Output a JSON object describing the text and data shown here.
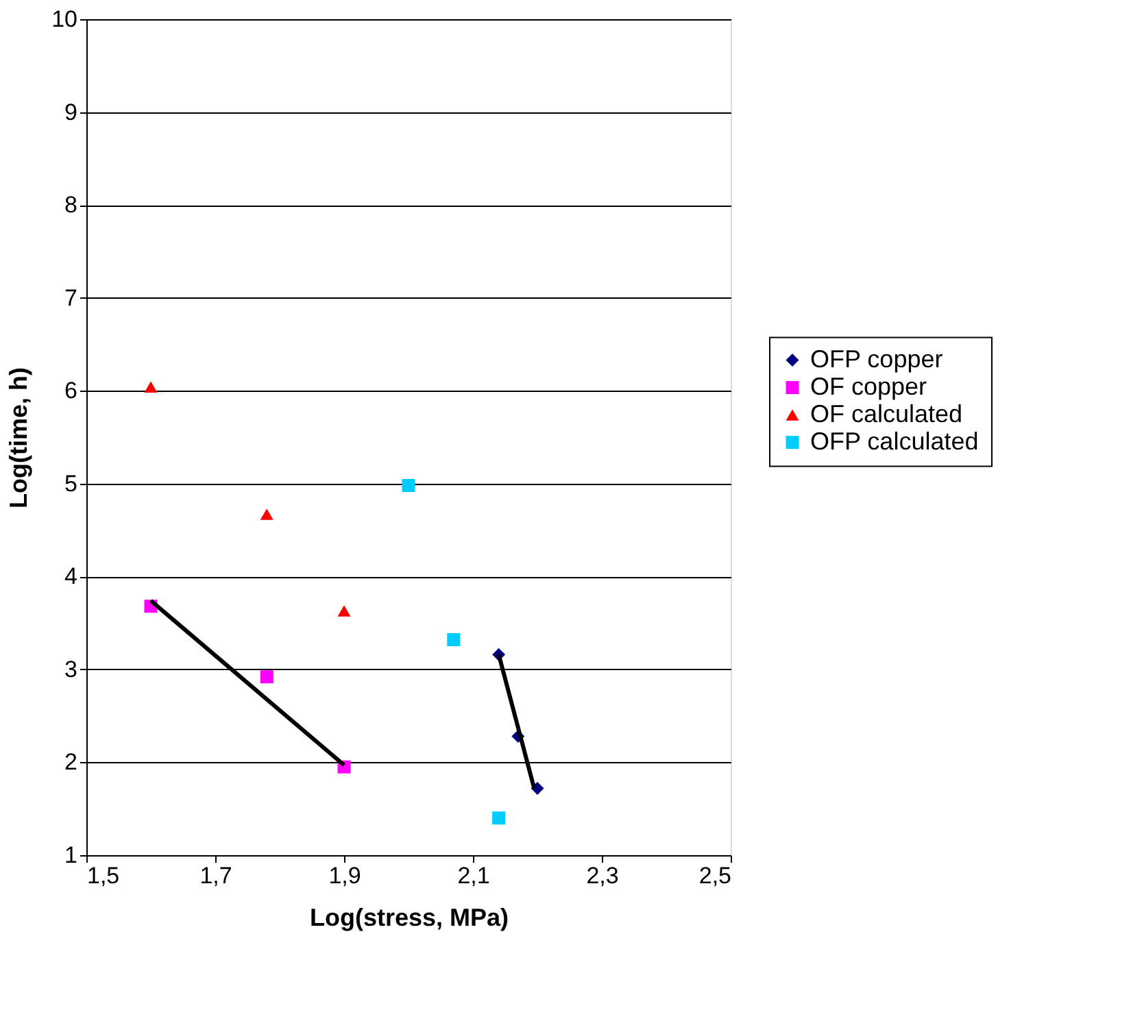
{
  "chart_data": {
    "type": "scatter",
    "xlabel": "Log(stress, MPa)",
    "ylabel": "Log(time, h)",
    "xlim": [
      1.5,
      2.5
    ],
    "xticks": [
      {
        "value": 1.5,
        "label": "1,5"
      },
      {
        "value": 1.7,
        "label": "1,7"
      },
      {
        "value": 1.9,
        "label": "1,9"
      },
      {
        "value": 2.1,
        "label": "2,1"
      },
      {
        "value": 2.3,
        "label": "2,3"
      },
      {
        "value": 2.5,
        "label": "2,5"
      }
    ],
    "ylim": [
      1,
      10
    ],
    "yticks": [
      1,
      2,
      3,
      4,
      5,
      6,
      7,
      8,
      9,
      10
    ],
    "grid": "y",
    "legend": "right",
    "series": [
      {
        "name": "OFP copper",
        "color": "#000080",
        "marker": "diamond",
        "x": [
          2.14,
          2.17,
          2.2
        ],
        "values": [
          3.16,
          2.28,
          1.72
        ]
      },
      {
        "name": "OF copper",
        "color": "#ff00ff",
        "marker": "square",
        "x": [
          1.6,
          1.78,
          1.9
        ],
        "values": [
          3.68,
          2.92,
          1.95
        ]
      },
      {
        "name": "OF calculated",
        "color": "#ff0000",
        "marker": "triangle",
        "x": [
          1.6,
          1.78,
          1.9
        ],
        "values": [
          6.04,
          4.67,
          3.63
        ]
      },
      {
        "name": "OFP calculated",
        "color": "#00ccff",
        "marker": "square",
        "x": [
          2.0,
          2.07,
          2.14
        ],
        "values": [
          4.98,
          3.32,
          1.4
        ]
      },
      {
        "type": "line",
        "color": "#000000",
        "line_style": "solid",
        "x": [
          1.6,
          1.9
        ],
        "values": [
          3.74,
          1.97
        ]
      },
      {
        "type": "line",
        "color": "#000000",
        "line_style": "solid",
        "x": [
          2.14,
          2.195
        ],
        "values": [
          3.16,
          1.72
        ]
      }
    ]
  }
}
